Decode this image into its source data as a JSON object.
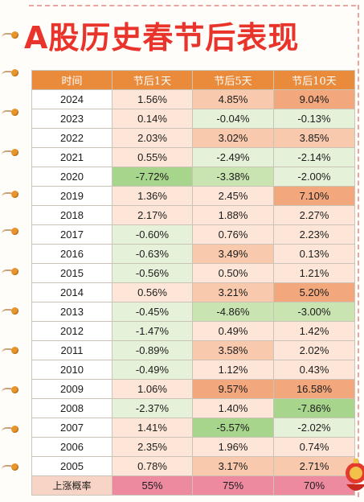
{
  "title": "A股历史春节后表现",
  "table": {
    "headers": [
      "时间",
      "节后1天",
      "节后5天",
      "节后10天"
    ],
    "rows": [
      {
        "year": "2024",
        "d1": "1.56%",
        "d5": "4.85%",
        "d10": "9.04%"
      },
      {
        "year": "2023",
        "d1": "0.14%",
        "d5": "-0.04%",
        "d10": "-0.13%"
      },
      {
        "year": "2022",
        "d1": "2.03%",
        "d5": "3.02%",
        "d10": "3.85%"
      },
      {
        "year": "2021",
        "d1": "0.55%",
        "d5": "-2.49%",
        "d10": "-2.14%"
      },
      {
        "year": "2020",
        "d1": "-7.72%",
        "d5": "-3.38%",
        "d10": "-2.00%"
      },
      {
        "year": "2019",
        "d1": "1.36%",
        "d5": "2.45%",
        "d10": "7.10%"
      },
      {
        "year": "2018",
        "d1": "2.17%",
        "d5": "1.88%",
        "d10": "2.27%"
      },
      {
        "year": "2017",
        "d1": "-0.60%",
        "d5": "0.76%",
        "d10": "2.23%"
      },
      {
        "year": "2016",
        "d1": "-0.63%",
        "d5": "3.49%",
        "d10": "0.13%"
      },
      {
        "year": "2015",
        "d1": "-0.56%",
        "d5": "0.50%",
        "d10": "1.21%"
      },
      {
        "year": "2014",
        "d1": "0.56%",
        "d5": "3.21%",
        "d10": "5.20%"
      },
      {
        "year": "2013",
        "d1": "-0.45%",
        "d5": "-4.86%",
        "d10": "-3.00%"
      },
      {
        "year": "2012",
        "d1": "-1.47%",
        "d5": "0.49%",
        "d10": "1.42%"
      },
      {
        "year": "2011",
        "d1": "-0.89%",
        "d5": "3.58%",
        "d10": "2.02%"
      },
      {
        "year": "2010",
        "d1": "-0.49%",
        "d5": "1.12%",
        "d10": "0.43%"
      },
      {
        "year": "2009",
        "d1": "1.06%",
        "d5": "9.57%",
        "d10": "16.58%"
      },
      {
        "year": "2008",
        "d1": "-2.37%",
        "d5": "1.40%",
        "d10": "-7.86%"
      },
      {
        "year": "2007",
        "d1": "1.41%",
        "d5": "-5.57%",
        "d10": "-2.02%"
      },
      {
        "year": "2006",
        "d1": "2.35%",
        "d5": "1.96%",
        "d10": "0.74%"
      },
      {
        "year": "2005",
        "d1": "0.78%",
        "d5": "3.17%",
        "d10": "2.71%"
      }
    ],
    "summary": {
      "label": "上涨概率",
      "d1": "55%",
      "d5": "75%",
      "d10": "70%"
    }
  },
  "colors": {
    "title": "#e8342b",
    "header_bg": "#ea8b3c",
    "strong_pos": "#f3a77c",
    "mid_pos": "#f8c9ad",
    "light_pos": "#fde6d8",
    "light_neg": "#e6f1da",
    "mid_neg": "#c9e3b1",
    "strong_neg": "#a8d58c",
    "summary_bg": "#ee8aa0"
  },
  "icons": [
    "binder-ring-icon",
    "festive-lantern-icon"
  ]
}
